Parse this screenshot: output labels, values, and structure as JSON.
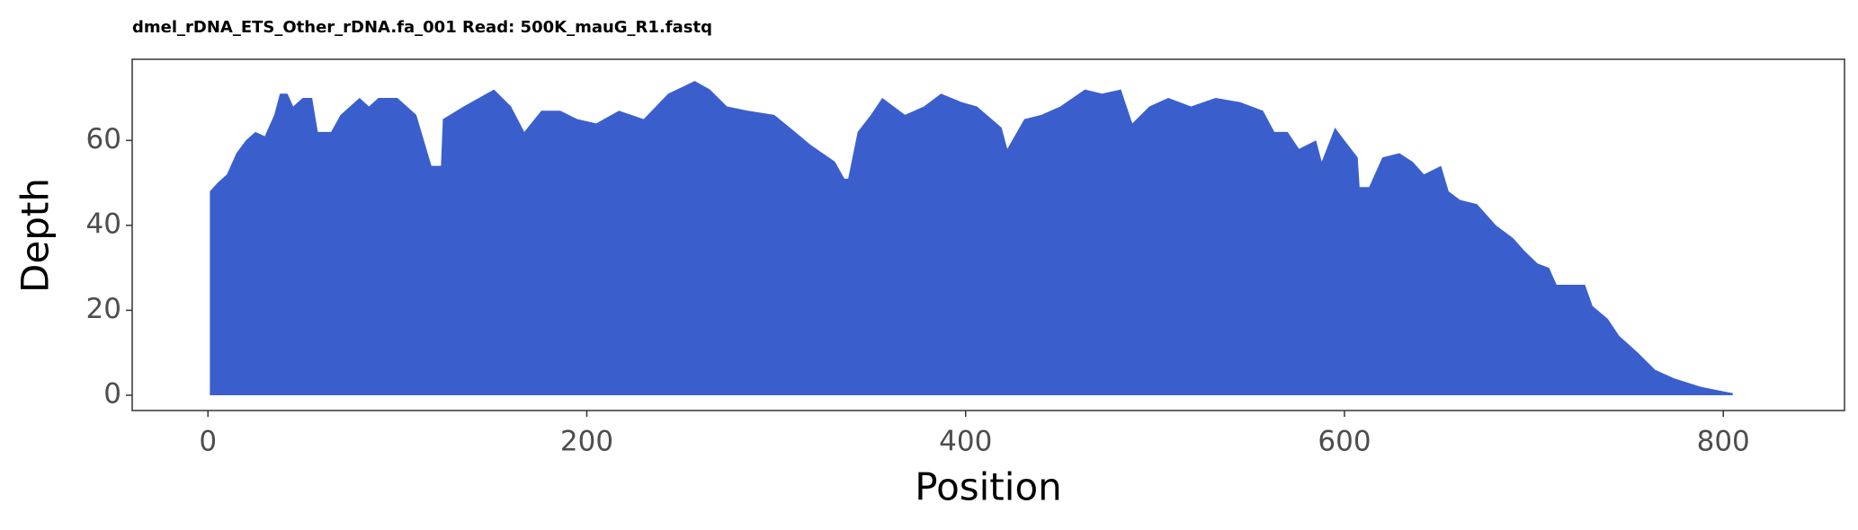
{
  "chart_data": {
    "type": "area",
    "title": "dmel_rDNA_ETS_Other_rDNA.fa_001 Read: 500K_mauG_R1.fastq",
    "x_label": "Position",
    "y_label": "Depth",
    "color": "#3a5fcd",
    "x": [
      1,
      5,
      10,
      15,
      20,
      25,
      30,
      35,
      38,
      42,
      45,
      50,
      55,
      58,
      65,
      70,
      75,
      80,
      85,
      90,
      100,
      110,
      114,
      118,
      123,
      124,
      135,
      151,
      160,
      167,
      176,
      186,
      195,
      205,
      217,
      230,
      243,
      257,
      265,
      274,
      285,
      299,
      310,
      318,
      331,
      336,
      338,
      343,
      350,
      356,
      368,
      378,
      387,
      398,
      406,
      419,
      422,
      431,
      440,
      450,
      463,
      472,
      482,
      488,
      497,
      507,
      519,
      532,
      545,
      557,
      563,
      570,
      576,
      585,
      588,
      595,
      600,
      607,
      608,
      613,
      620,
      629,
      636,
      642,
      651,
      655,
      661,
      670,
      680,
      689,
      695,
      702,
      708,
      712,
      727,
      731,
      739,
      745,
      755,
      764,
      774,
      788,
      799,
      805
    ],
    "values": [
      48,
      50,
      52,
      57,
      60,
      62,
      61,
      66,
      71,
      71,
      68,
      70,
      70,
      62,
      62,
      66,
      68,
      70,
      68,
      70,
      70,
      66,
      60,
      54,
      54,
      65,
      68,
      72,
      68,
      62,
      67,
      67,
      65,
      64,
      67,
      65,
      71,
      74,
      72,
      68,
      67,
      66,
      62,
      59,
      55,
      51,
      51,
      62,
      66,
      70,
      66,
      68,
      71,
      69,
      68,
      63,
      58,
      65,
      66,
      68,
      72,
      71,
      72,
      64,
      68,
      70,
      68,
      70,
      69,
      67,
      62,
      62,
      58,
      60,
      55,
      63,
      60,
      56,
      49,
      49,
      56,
      57,
      55,
      52,
      54,
      48,
      46,
      45,
      40,
      37,
      34,
      31,
      30,
      26,
      26,
      21,
      18,
      14,
      10,
      6,
      4,
      2,
      1,
      0.5
    ],
    "xlim": [
      -40,
      864
    ],
    "ylim": [
      -3.6,
      79.1
    ],
    "xticks": [
      0,
      200,
      400,
      600,
      800
    ],
    "yticks": [
      0,
      20,
      40,
      60
    ]
  }
}
